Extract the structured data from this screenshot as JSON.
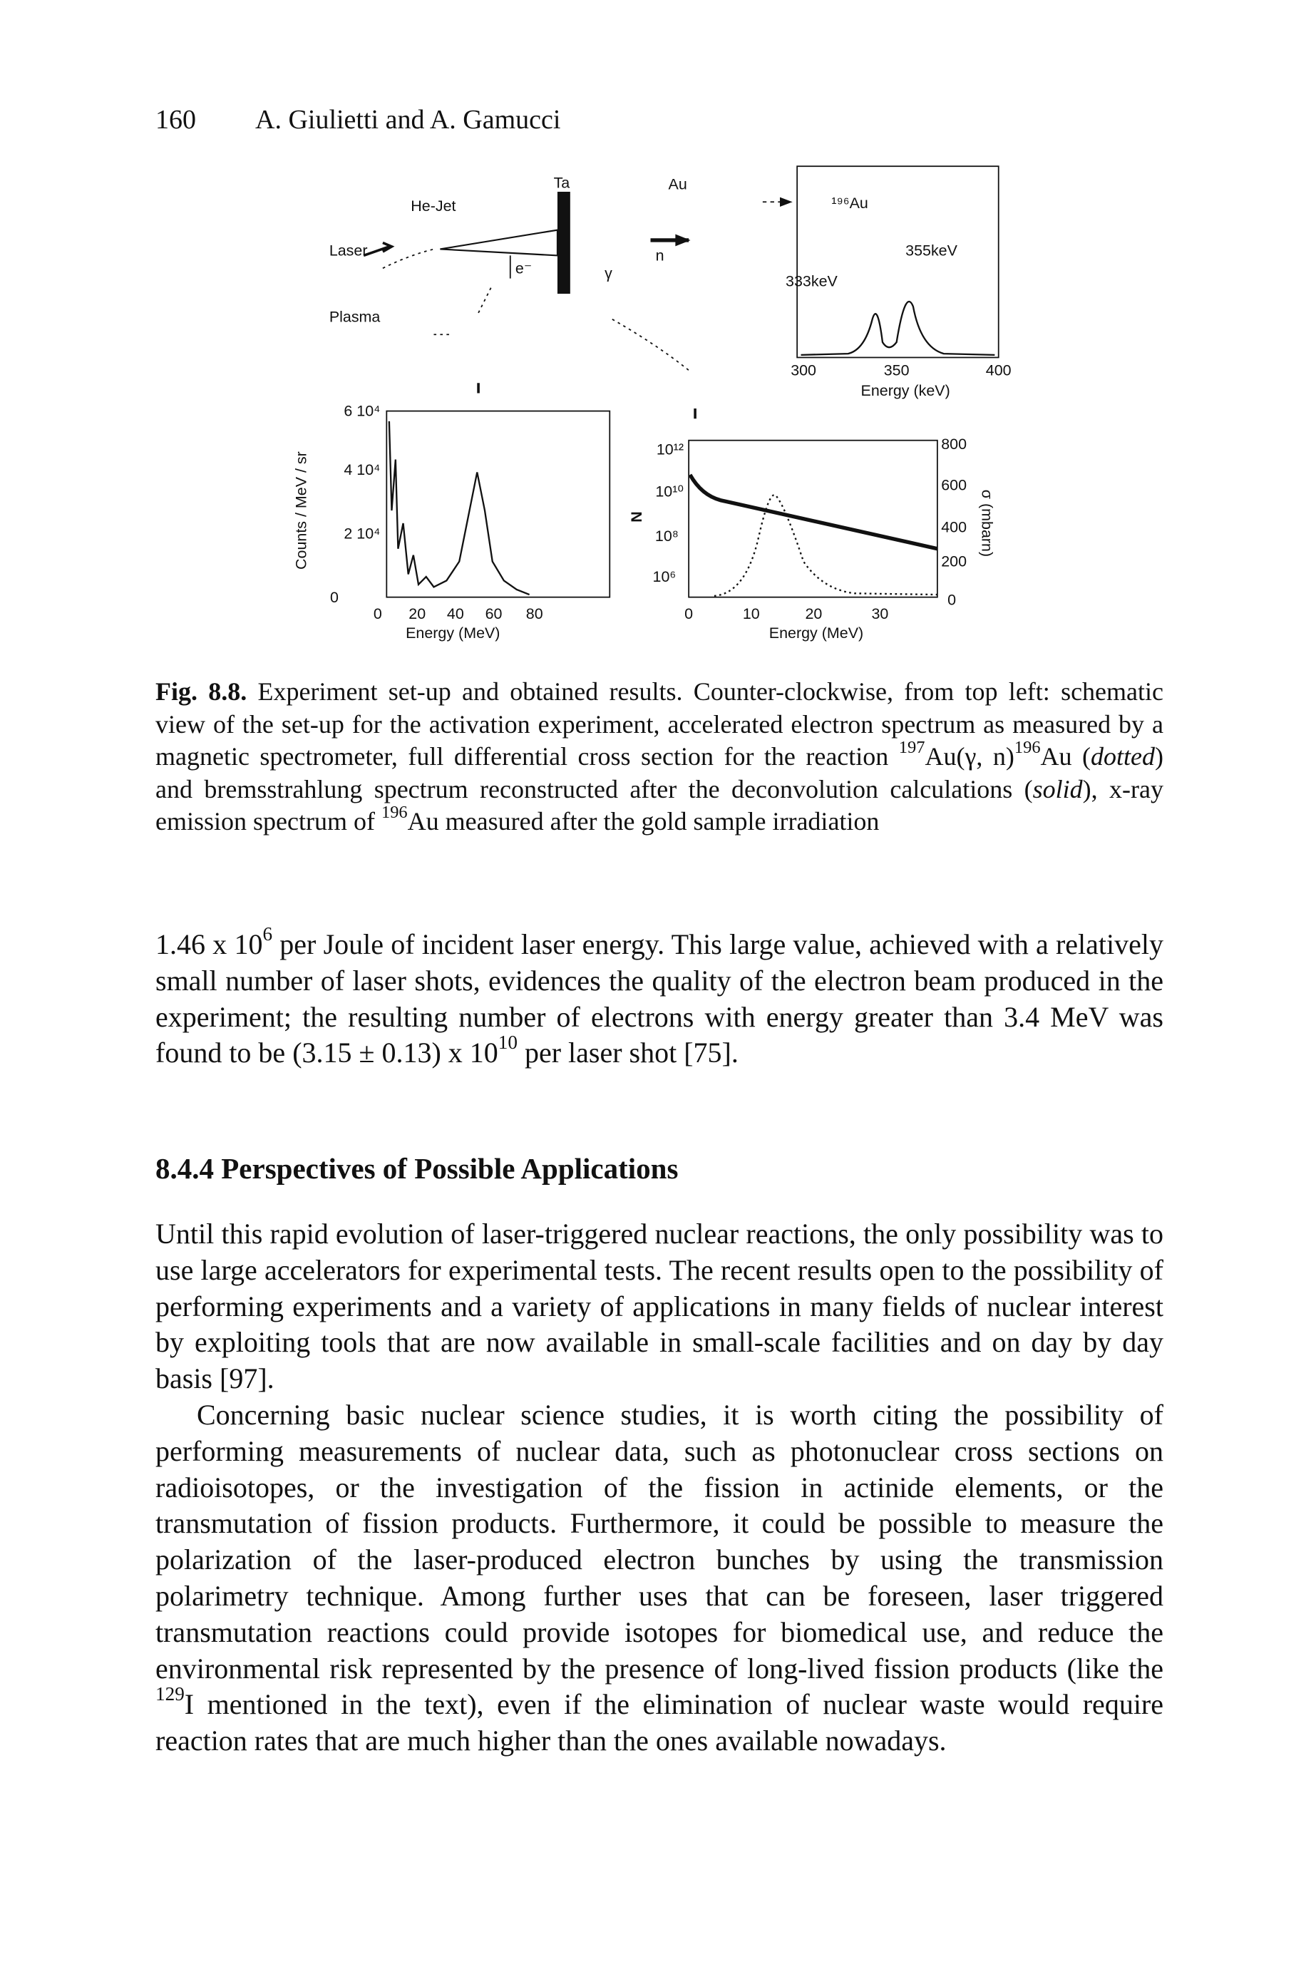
{
  "header": {
    "page_number": "160",
    "authors": "A. Giulietti and A. Gamucci"
  },
  "figure": {
    "schematic": {
      "laser": "Laser",
      "jet": "He-Jet",
      "target": "Ta",
      "electron": "e⁻",
      "plasma": "Plasma",
      "gamma": "γ",
      "sample": "Au",
      "neutron": "n"
    },
    "inset": {
      "isotope": "¹⁹⁶Au",
      "peak_high": "355keV",
      "peak_low": "333keV",
      "xticks": [
        "300",
        "350",
        "400"
      ],
      "xlabel": "Energy (keV)"
    },
    "electron_spectrum": {
      "ylabel": "Counts / MeV / sr",
      "yticks": [
        "6 10⁴",
        "4 10⁴",
        "2 10⁴",
        "0"
      ],
      "xticks": [
        "0",
        "20",
        "40",
        "60",
        "80"
      ],
      "xlabel": "Energy (MeV)"
    },
    "cross_section": {
      "ylabel": "N",
      "yticks": [
        "10¹²",
        "10¹⁰",
        "10⁸",
        "10⁶"
      ],
      "y2label": "σ (mbarn)",
      "y2ticks": [
        "800",
        "600",
        "400",
        "200",
        "0"
      ],
      "xticks": [
        "0",
        "10",
        "20",
        "30"
      ],
      "xlabel": "Energy (MeV)"
    }
  },
  "caption": {
    "label": "Fig. 8.8.",
    "parts": [
      " Experiment set-up and obtained results. Counter-clockwise, from top left: schematic view of the set-up for the activation experiment, accelerated electron spectrum as measured by a magnetic spectrometer, full differential cross section for the reaction ",
      "197",
      "Au(γ, n)",
      "196",
      "Au (",
      "dotted",
      ") and bremsstrahlung spectrum reconstructed after the deconvolution calculations (",
      "solid",
      "), x-ray emission spectrum of ",
      "196",
      "Au measured after the gold sample irradiation"
    ]
  },
  "paragraph_1": [
    "1.46 x 10",
    "6",
    " per Joule of incident laser energy. This large value, achieved with a relatively small number of laser shots, evidences the quality of the electron beam produced in the experiment; the resulting number of electrons with energy greater than 3.4 MeV was found to be (3.15 ± 0.13) x 10",
    "10",
    " per laser shot [75]."
  ],
  "section": {
    "number": "8.4.4",
    "title": "Perspectives of Possible Applications"
  },
  "paragraph_2": "Until this rapid evolution of laser-triggered nuclear reactions, the only possibility was to use large accelerators for experimental tests. The recent results open to the possibility of performing experiments and a variety of applications in many fields of nuclear interest by exploiting tools that are now available in small-scale facilities and on day by day basis [97].",
  "paragraph_3": [
    "Concerning basic nuclear science studies, it is worth citing the possibility of performing measurements of nuclear data, such as photonuclear cross sections on radioisotopes, or the investigation of the fission in actinide elements, or the transmutation of fission products. Furthermore, it could be possible to measure the polarization of the laser-produced electron bunches by using the transmission polarimetry technique. Among further uses that can be foreseen, laser triggered transmutation reactions could provide isotopes for biomedical use, and reduce the environmental risk represented by the presence of long-lived fission products (like the ",
    "129",
    "I mentioned in the text), even if the elimination of nuclear waste would require reaction rates that are much higher than the ones available nowadays."
  ]
}
